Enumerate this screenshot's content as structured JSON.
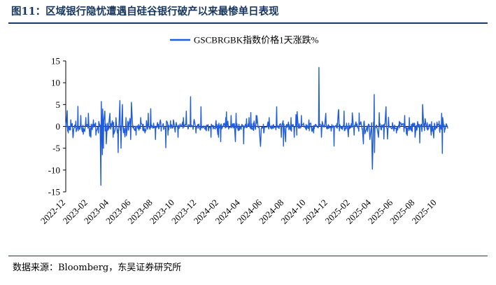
{
  "figure": {
    "title": "图11：区域银行隐忧遭遇自硅谷银行破产以来最惨单日表现",
    "source": "数据来源：Bloomberg，东吴证券研究所"
  },
  "chart_data": {
    "type": "line",
    "legend": [
      "GSCBRGBK指数价格1天涨跌%"
    ],
    "legend_position": "top-center",
    "series_color": "#1f5ce0",
    "ylim": [
      -15,
      15
    ],
    "yticks": [
      -15,
      -10,
      -5,
      0,
      5,
      10,
      15
    ],
    "xticks": [
      "2022-12",
      "2023-02",
      "2023-04",
      "2023-06",
      "2023-08",
      "2023-10",
      "2023-12",
      "2024-02",
      "2024-04",
      "2024-06",
      "2024-08",
      "2024-10",
      "2024-12",
      "2025-02",
      "2025-04",
      "2025-06",
      "2025-08",
      "2025-10"
    ],
    "xlim": [
      "2022-12-01",
      "2025-10-31"
    ],
    "grid": false,
    "series": [
      {
        "values_approx": [
          [
            "2022-12-01",
            1.0
          ],
          [
            "2022-12-08",
            -1.5
          ],
          [
            "2022-12-15",
            1.5
          ],
          [
            "2022-12-22",
            -2.0
          ],
          [
            "2022-12-29",
            1.2
          ],
          [
            "2023-01-05",
            -1.0
          ],
          [
            "2023-01-12",
            2.5
          ],
          [
            "2023-01-19",
            -1.8
          ],
          [
            "2023-01-26",
            2.0
          ],
          [
            "2023-02-02",
            3.0
          ],
          [
            "2023-02-09",
            -2.5
          ],
          [
            "2023-02-16",
            1.5
          ],
          [
            "2023-02-23",
            -2.0
          ],
          [
            "2023-03-02",
            -1.5
          ],
          [
            "2023-03-08",
            -7.0
          ],
          [
            "2023-03-09",
            -13.5
          ],
          [
            "2023-03-10",
            5.7
          ],
          [
            "2023-03-13",
            -6.5
          ],
          [
            "2023-03-14",
            4.0
          ],
          [
            "2023-03-16",
            -5.0
          ],
          [
            "2023-03-20",
            3.5
          ],
          [
            "2023-03-24",
            -4.0
          ],
          [
            "2023-04-03",
            3.0
          ],
          [
            "2023-04-12",
            -2.5
          ],
          [
            "2023-04-20",
            2.0
          ],
          [
            "2023-04-26",
            -6.0
          ],
          [
            "2023-05-01",
            5.9
          ],
          [
            "2023-05-04",
            -5.0
          ],
          [
            "2023-05-08",
            5.0
          ],
          [
            "2023-05-18",
            2.0
          ],
          [
            "2023-05-31",
            -3.0
          ],
          [
            "2023-06-02",
            5.5
          ],
          [
            "2023-06-15",
            -2.0
          ],
          [
            "2023-06-28",
            2.0
          ],
          [
            "2023-07-10",
            -1.5
          ],
          [
            "2023-07-19",
            3.0
          ],
          [
            "2023-08-08",
            -3.0
          ],
          [
            "2023-08-22",
            1.5
          ],
          [
            "2023-09-12",
            -2.0
          ],
          [
            "2023-09-27",
            1.5
          ],
          [
            "2023-10-10",
            -2.5
          ],
          [
            "2023-10-25",
            2.0
          ],
          [
            "2023-11-02",
            3.5
          ],
          [
            "2023-11-14",
            6.8
          ],
          [
            "2023-11-29",
            -1.5
          ],
          [
            "2023-12-13",
            4.5
          ],
          [
            "2023-12-28",
            -1.0
          ],
          [
            "2024-01-10",
            -2.5
          ],
          [
            "2024-01-31",
            -2.5
          ],
          [
            "2024-02-06",
            -3.5
          ],
          [
            "2024-02-20",
            2.0
          ],
          [
            "2024-03-06",
            2.5
          ],
          [
            "2024-03-20",
            3.0
          ],
          [
            "2024-04-10",
            -4.0
          ],
          [
            "2024-04-25",
            2.0
          ],
          [
            "2024-05-15",
            2.5
          ],
          [
            "2024-06-05",
            -1.5
          ],
          [
            "2024-06-20",
            2.0
          ],
          [
            "2024-07-11",
            4.5
          ],
          [
            "2024-07-24",
            -2.5
          ],
          [
            "2024-08-05",
            -3.5
          ],
          [
            "2024-08-20",
            2.0
          ],
          [
            "2024-09-05",
            -2.0
          ],
          [
            "2024-09-18",
            2.5
          ],
          [
            "2024-10-09",
            1.5
          ],
          [
            "2024-10-22",
            -1.5
          ],
          [
            "2024-11-06",
            13.5
          ],
          [
            "2024-11-13",
            -2.5
          ],
          [
            "2024-11-25",
            3.0
          ],
          [
            "2024-12-18",
            -4.5
          ],
          [
            "2025-01-15",
            3.5
          ],
          [
            "2025-02-12",
            -2.0
          ],
          [
            "2025-03-10",
            -4.0
          ],
          [
            "2025-03-28",
            -3.0
          ],
          [
            "2025-04-03",
            -6.0
          ],
          [
            "2025-04-04",
            -9.8
          ],
          [
            "2025-04-07",
            1.0
          ],
          [
            "2025-04-09",
            7.3
          ],
          [
            "2025-04-10",
            -6.0
          ],
          [
            "2025-04-21",
            -2.5
          ],
          [
            "2025-05-12",
            4.5
          ],
          [
            "2025-06-10",
            -1.5
          ],
          [
            "2025-07-03",
            2.5
          ],
          [
            "2025-07-16",
            2.0
          ],
          [
            "2025-08-01",
            -2.5
          ],
          [
            "2025-08-22",
            5.0
          ],
          [
            "2025-09-15",
            -2.0
          ],
          [
            "2025-10-01",
            1.0
          ],
          [
            "2025-10-14",
            3.0
          ],
          [
            "2025-10-16",
            -6.2
          ],
          [
            "2025-10-17",
            2.0
          ]
        ]
      }
    ]
  }
}
